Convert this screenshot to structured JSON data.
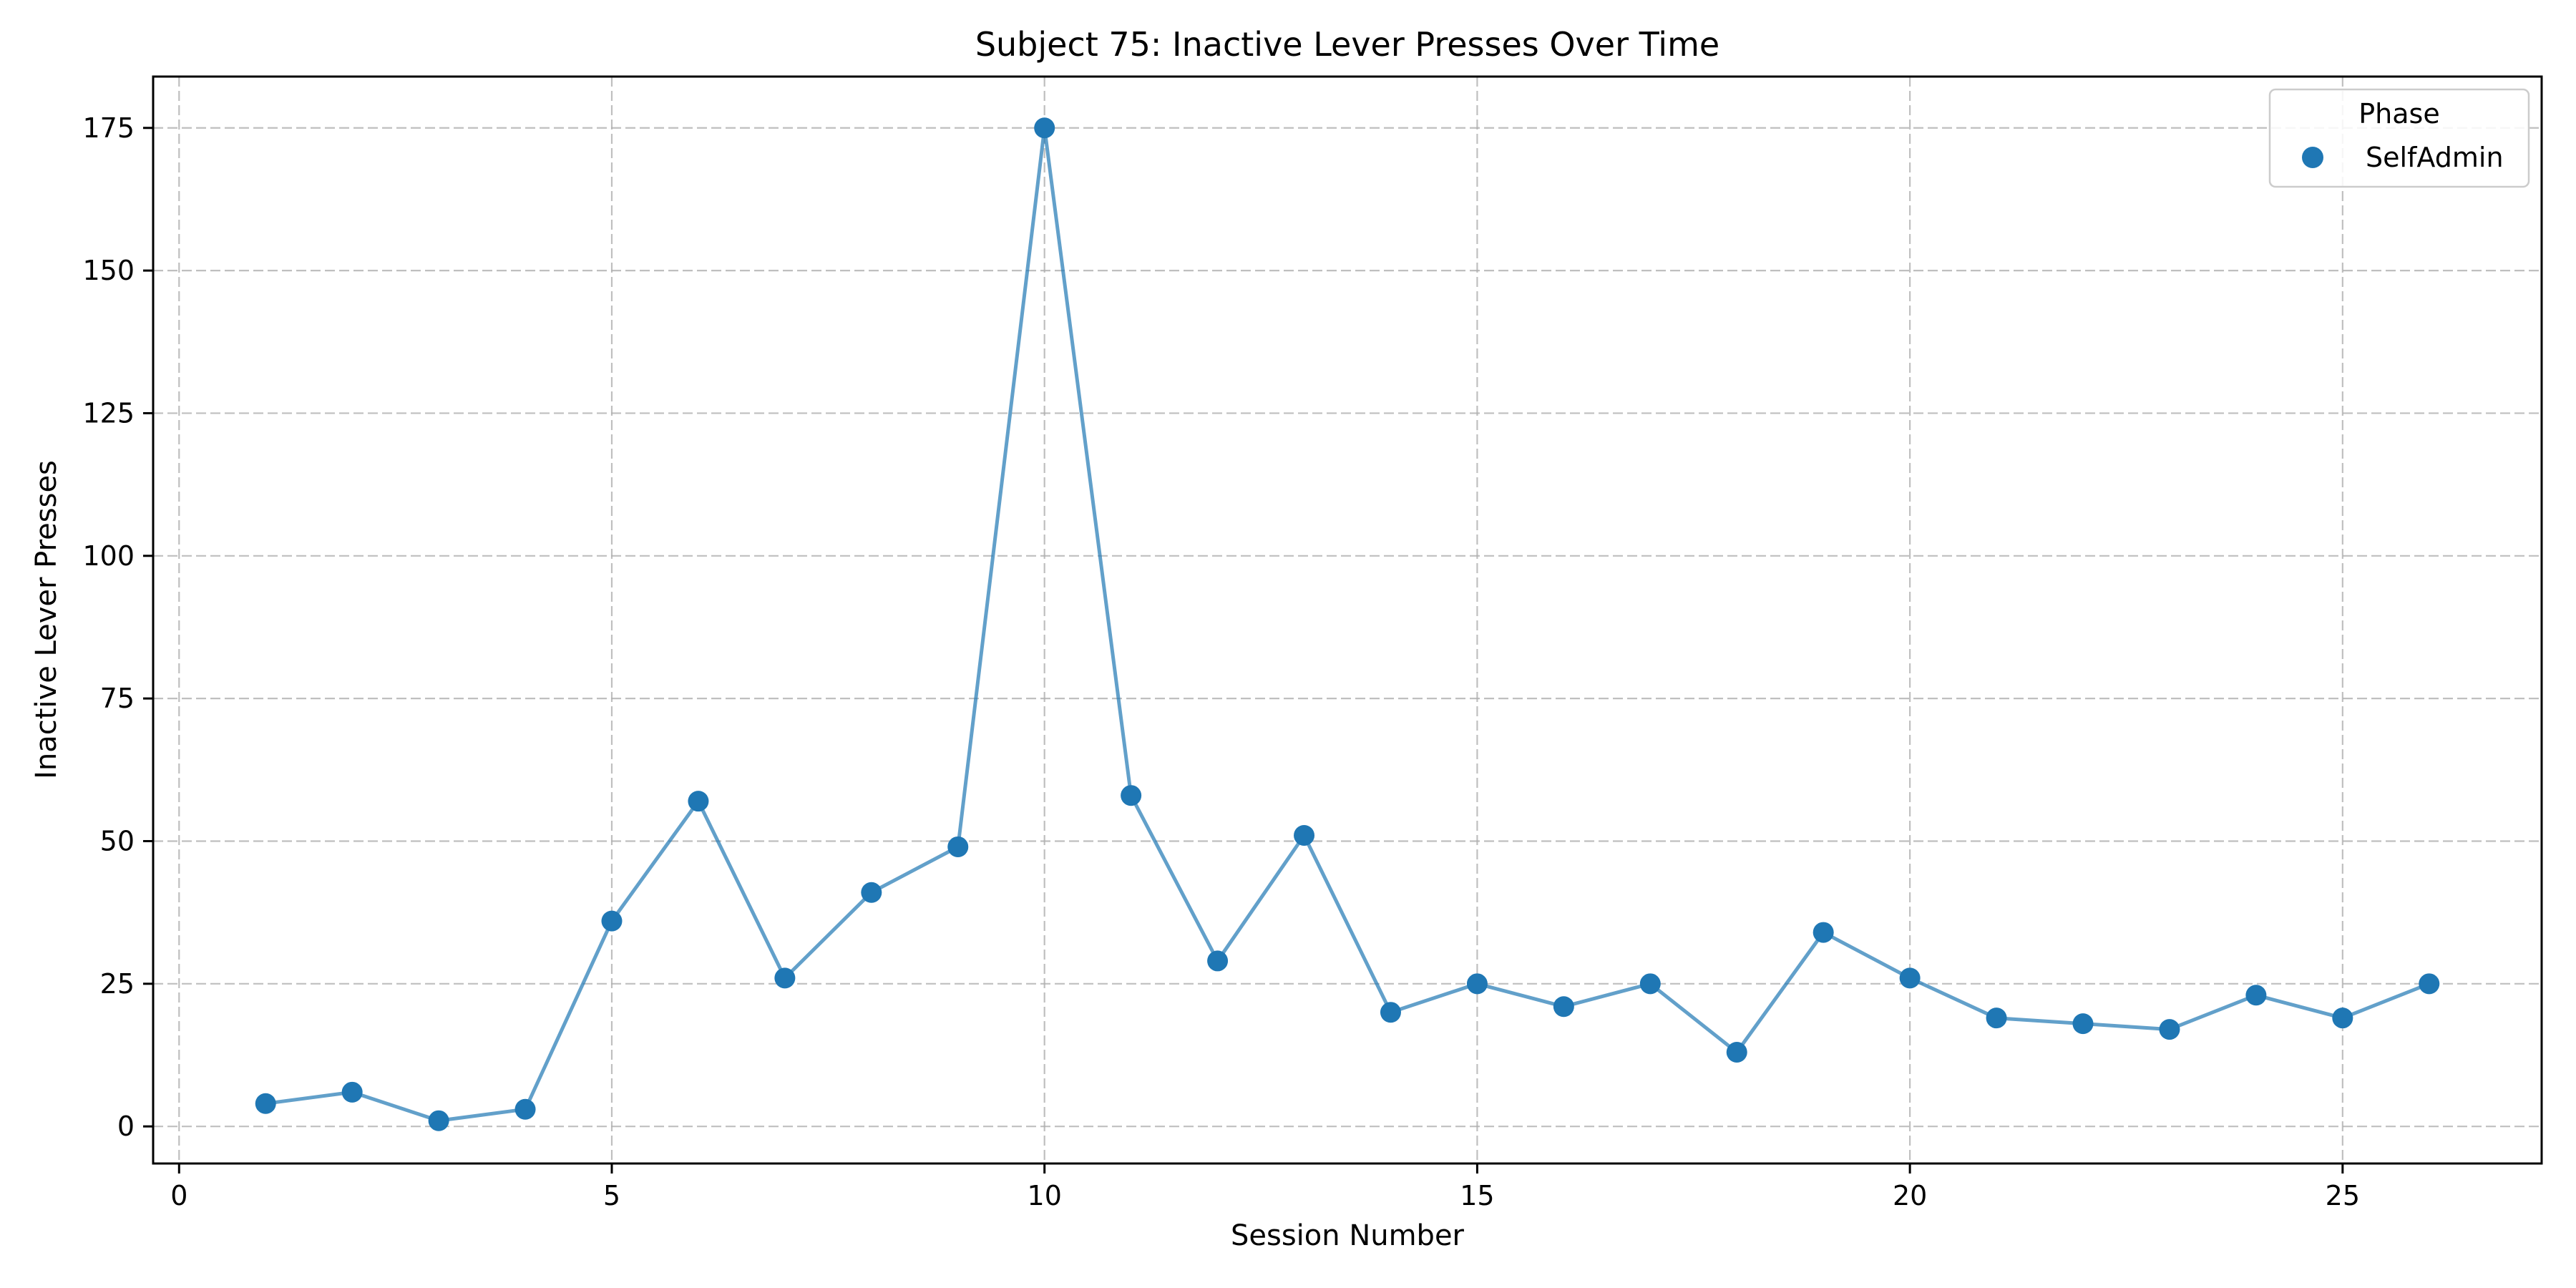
{
  "chart_data": {
    "type": "line",
    "title": "Subject 75: Inactive Lever Presses Over Time",
    "xlabel": "Session Number",
    "ylabel": "Inactive Lever Presses",
    "xlim": [
      -0.3,
      27.3
    ],
    "ylim": [
      -6.5,
      184
    ],
    "xticks": [
      0,
      5,
      10,
      15,
      20,
      25
    ],
    "yticks": [
      0,
      25,
      50,
      75,
      100,
      125,
      150,
      175
    ],
    "grid": true,
    "legend": {
      "title": "Phase",
      "placement": "top-right",
      "entries": [
        "SelfAdmin"
      ]
    },
    "series": [
      {
        "name": "SelfAdmin",
        "color": "#1f77b4",
        "x": [
          1,
          2,
          3,
          4,
          5,
          6,
          7,
          8,
          9,
          10,
          11,
          12,
          13,
          14,
          15,
          16,
          17,
          18,
          19,
          20,
          21,
          22,
          23,
          24,
          25,
          26
        ],
        "y": [
          4,
          6,
          1,
          3,
          36,
          57,
          26,
          41,
          49,
          175,
          58,
          29,
          51,
          20,
          25,
          21,
          25,
          13,
          34,
          26,
          19,
          18,
          17,
          23,
          19,
          25
        ]
      }
    ]
  }
}
